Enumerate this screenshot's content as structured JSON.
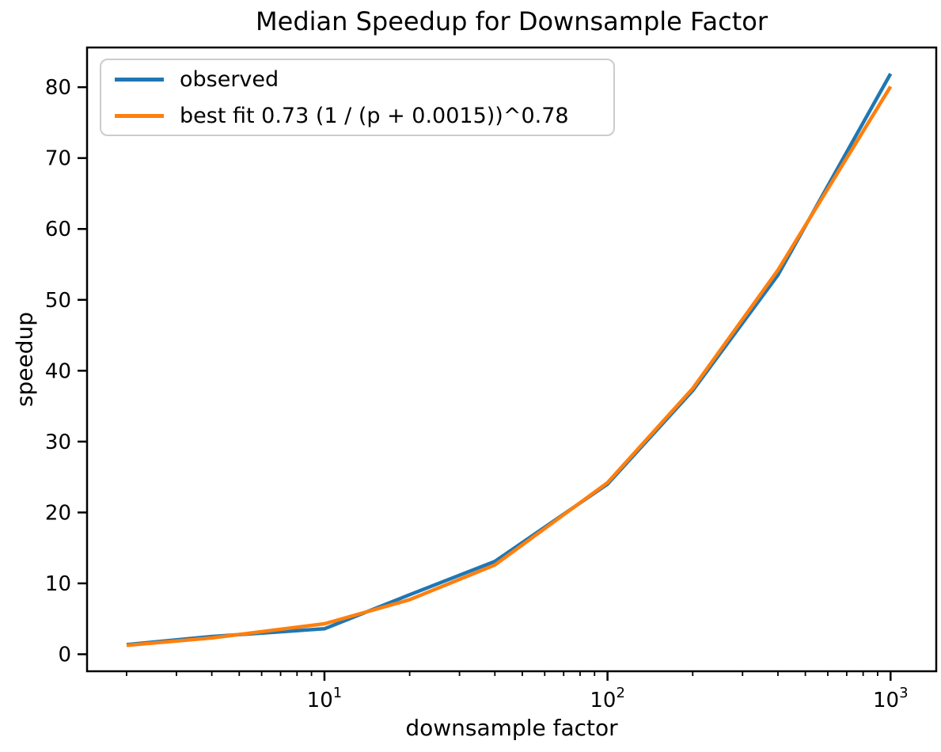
{
  "chart_data": {
    "type": "line",
    "title": "Median Speedup for Downsample Factor",
    "xlabel": "downsample factor",
    "ylabel": "speedup",
    "x_scale": "log",
    "grid": false,
    "xlim": [
      1.45,
      1450
    ],
    "ylim": [
      -2.4,
      85.6
    ],
    "x": [
      2,
      4,
      10,
      20,
      40,
      100,
      200,
      400,
      1000
    ],
    "series": [
      {
        "name": "observed",
        "color": "#1f77b4",
        "values": [
          1.35,
          2.5,
          3.6,
          8.4,
          13.1,
          24.0,
          37.2,
          53.5,
          81.9
        ]
      },
      {
        "name": "best fit 0.73 (1 / (p + 0.0015))^0.78",
        "color": "#ff7f0e",
        "values": [
          1.25,
          2.3,
          4.3,
          7.7,
          12.6,
          24.2,
          37.5,
          54.2,
          80.1
        ]
      }
    ],
    "y_ticks": [
      0,
      10,
      20,
      30,
      40,
      50,
      60,
      70,
      80
    ],
    "x_major_ticks": [
      {
        "value": 10,
        "base": "10",
        "exp": "1"
      },
      {
        "value": 100,
        "base": "10",
        "exp": "2"
      },
      {
        "value": 1000,
        "base": "10",
        "exp": "3"
      }
    ],
    "legend": {
      "position": "upper left",
      "entries": [
        "observed",
        "best fit 0.73 (1 / (p + 0.0015))^0.78"
      ]
    },
    "colors": {
      "spine": "#000000",
      "tick": "#000000",
      "text": "#000000",
      "legend_border": "#cccccc"
    }
  }
}
